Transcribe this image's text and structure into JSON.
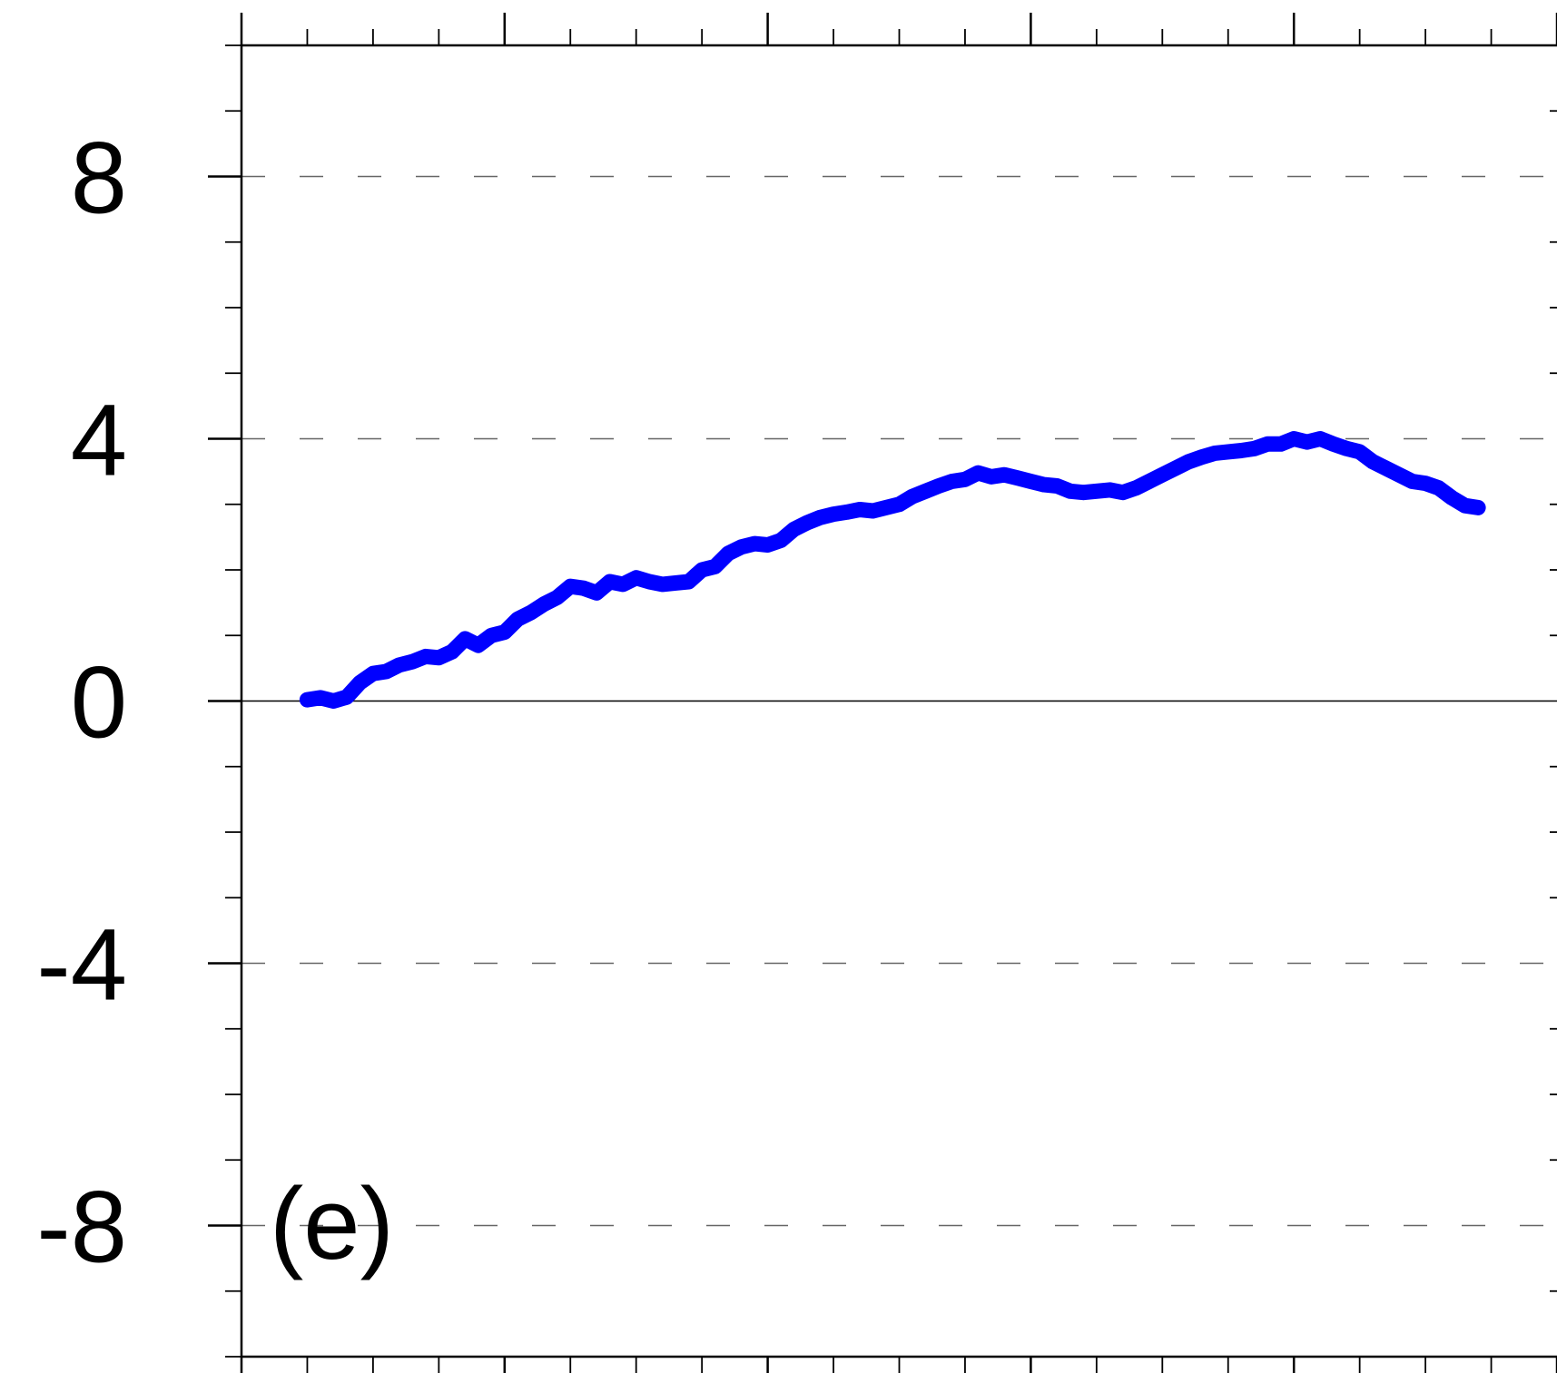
{
  "chart_data": {
    "type": "line",
    "panel_label": "(e)",
    "title": "",
    "xlabel": "",
    "ylabel": "",
    "xlim": [
      0,
      5
    ],
    "ylim": [
      -10,
      10
    ],
    "y_major_ticks": [
      -8,
      -4,
      0,
      4,
      8
    ],
    "y_tick_labels": [
      "-8",
      "-4",
      "0",
      "4",
      "8"
    ],
    "y_minor_step": 1,
    "x_major_ticks": [
      0,
      1,
      2,
      3,
      4,
      5
    ],
    "x_minor_step": 0.25,
    "grid": {
      "y_dashed_at": [
        -8,
        -4,
        4,
        8
      ],
      "zero_line": true
    },
    "colors": {
      "series": "#0000ff",
      "axis": "#000000",
      "grid": "#666666"
    },
    "series": [
      {
        "x": [
          0.25,
          0.3,
          0.35,
          0.4,
          0.45,
          0.5,
          0.55,
          0.6,
          0.65,
          0.7,
          0.75,
          0.8,
          0.85,
          0.9,
          0.95,
          1.0,
          1.05,
          1.1,
          1.15,
          1.2,
          1.25,
          1.3,
          1.35,
          1.4,
          1.45,
          1.5,
          1.55,
          1.6,
          1.65,
          1.7,
          1.75,
          1.8,
          1.85,
          1.9,
          1.95,
          2.0,
          2.05,
          2.1,
          2.15,
          2.2,
          2.25,
          2.3,
          2.35,
          2.4,
          2.45,
          2.5,
          2.55,
          2.6,
          2.65,
          2.7,
          2.75,
          2.8,
          2.85,
          2.9,
          2.95,
          3.0,
          3.05,
          3.1,
          3.15,
          3.2,
          3.25,
          3.3,
          3.35,
          3.4,
          3.45,
          3.5,
          3.55,
          3.6,
          3.65,
          3.7,
          3.75,
          3.8,
          3.85,
          3.9,
          3.95,
          4.0,
          4.05,
          4.1,
          4.15,
          4.2,
          4.25,
          4.3,
          4.35,
          4.4,
          4.45,
          4.5,
          4.55,
          4.6,
          4.65,
          4.7
        ],
        "values": [
          0.02,
          0.05,
          0.0,
          0.06,
          0.28,
          0.42,
          0.45,
          0.55,
          0.6,
          0.68,
          0.66,
          0.75,
          0.95,
          0.85,
          1.0,
          1.05,
          1.25,
          1.35,
          1.48,
          1.58,
          1.75,
          1.72,
          1.65,
          1.82,
          1.78,
          1.88,
          1.82,
          1.78,
          1.8,
          1.82,
          2.0,
          2.05,
          2.25,
          2.35,
          2.4,
          2.38,
          2.45,
          2.62,
          2.72,
          2.8,
          2.85,
          2.88,
          2.92,
          2.9,
          2.95,
          3.0,
          3.12,
          3.2,
          3.28,
          3.35,
          3.38,
          3.48,
          3.42,
          3.45,
          3.4,
          3.35,
          3.3,
          3.28,
          3.2,
          3.18,
          3.2,
          3.22,
          3.18,
          3.25,
          3.35,
          3.45,
          3.55,
          3.65,
          3.72,
          3.78,
          3.8,
          3.82,
          3.85,
          3.92,
          3.92,
          4.0,
          3.95,
          4.0,
          3.92,
          3.85,
          3.8,
          3.65,
          3.55,
          3.45,
          3.35,
          3.32,
          3.25,
          3.1,
          2.98,
          2.95
        ]
      }
    ]
  }
}
